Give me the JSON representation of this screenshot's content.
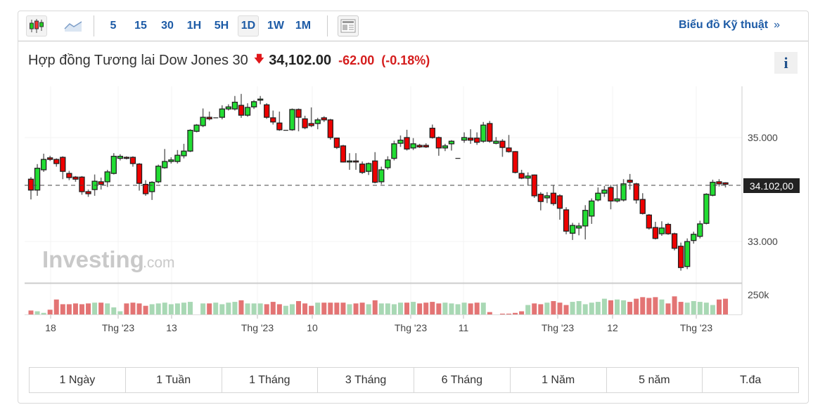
{
  "toolbar": {
    "chart_type_icons": [
      "candlestick-icon",
      "area-chart-icon"
    ],
    "intervals": [
      "5",
      "15",
      "30",
      "1H",
      "5H",
      "1D",
      "1W",
      "1M"
    ],
    "selected_interval": "1D",
    "layout_icon": "news-layout-icon",
    "technical_link": "Biểu đồ Kỹ thuật",
    "technical_chevron": "»"
  },
  "instrument": {
    "name": "Hợp đồng Tương lai Dow Jones 30",
    "direction_icon": "down-arrow-icon",
    "price": "34,102.00",
    "change": "-62.00",
    "change_pct": "(-0.18%)",
    "info_label": "i"
  },
  "watermark": {
    "brand": "Investing",
    "suffix": ".com"
  },
  "colors": {
    "up": "#22dd33",
    "down": "#ee0000",
    "vol_up": "#a8d8b4",
    "vol_down": "#e37474",
    "accent": "#1d5ba6",
    "last_price_bg": "#222222"
  },
  "chart_data": {
    "type": "candlestick",
    "y_ticks": [
      "35.000",
      "33.000"
    ],
    "y_tick_values": [
      35000,
      33000
    ],
    "volume_tick": "250k",
    "volume_tick_value": 250,
    "last_price_label": "34.102,00",
    "last_price": 34102,
    "x_tick_labels": [
      "18",
      "Thg '23",
      "13",
      "Thg '23",
      "10",
      "Thg '23",
      "11",
      "Thg '23",
      "12",
      "Thg '23"
    ],
    "ohlc": [
      [
        34200,
        34240,
        33810,
        33990
      ],
      [
        33990,
        34490,
        33880,
        34410
      ],
      [
        34380,
        34690,
        34340,
        34580
      ],
      [
        34610,
        34650,
        34550,
        34580
      ],
      [
        34580,
        34600,
        34440,
        34500
      ],
      [
        34620,
        34640,
        34200,
        34350
      ],
      [
        34310,
        34360,
        34180,
        34230
      ],
      [
        34240,
        34260,
        34150,
        34200
      ],
      [
        34240,
        34260,
        33900,
        33960
      ],
      [
        33960,
        34000,
        33860,
        33920
      ],
      [
        34000,
        34290,
        33880,
        34160
      ],
      [
        34150,
        34230,
        34000,
        34100
      ],
      [
        34150,
        34380,
        34050,
        34340
      ],
      [
        34310,
        34700,
        34290,
        34640
      ],
      [
        34600,
        34680,
        34560,
        34640
      ],
      [
        34620,
        34640,
        34580,
        34600
      ],
      [
        34620,
        34640,
        34440,
        34500
      ],
      [
        34490,
        34510,
        33980,
        34120
      ],
      [
        34100,
        34180,
        33880,
        33920
      ],
      [
        33960,
        34160,
        33800,
        34140
      ],
      [
        34150,
        34480,
        34120,
        34450
      ],
      [
        34420,
        34780,
        34400,
        34540
      ],
      [
        34540,
        34620,
        34500,
        34570
      ],
      [
        34540,
        34760,
        34500,
        34660
      ],
      [
        34650,
        34880,
        34600,
        34740
      ],
      [
        34740,
        35160,
        34720,
        35140
      ],
      [
        35120,
        35260,
        35100,
        35240
      ],
      [
        35230,
        35560,
        35200,
        35390
      ],
      [
        35390,
        35500,
        35330,
        35360
      ],
      [
        35380,
        35380,
        35380,
        35380
      ],
      [
        35390,
        35620,
        35350,
        35550
      ],
      [
        35550,
        35640,
        35520,
        35590
      ],
      [
        35550,
        35800,
        35520,
        35680
      ],
      [
        35620,
        35840,
        35380,
        35430
      ],
      [
        35430,
        35660,
        35400,
        35580
      ],
      [
        35590,
        35720,
        35550,
        35690
      ],
      [
        35720,
        35800,
        35640,
        35740
      ],
      [
        35630,
        35660,
        35360,
        35390
      ],
      [
        35380,
        35520,
        35250,
        35300
      ],
      [
        35280,
        35500,
        35130,
        35150
      ],
      [
        35140,
        35140,
        35140,
        35140
      ],
      [
        35150,
        35560,
        35130,
        35540
      ],
      [
        35540,
        35560,
        35120,
        35390
      ],
      [
        35360,
        35420,
        35160,
        35190
      ],
      [
        35270,
        35580,
        35200,
        35230
      ],
      [
        35270,
        35380,
        35160,
        35340
      ],
      [
        35380,
        35410,
        35300,
        35340
      ],
      [
        35340,
        35360,
        34960,
        35000
      ],
      [
        34990,
        35000,
        34780,
        34810
      ],
      [
        34840,
        34860,
        34520,
        34530
      ],
      [
        34530,
        34700,
        34380,
        34550
      ],
      [
        34550,
        34700,
        34380,
        34530
      ],
      [
        34490,
        34540,
        34300,
        34330
      ],
      [
        34350,
        34520,
        34280,
        34500
      ],
      [
        34550,
        34720,
        34120,
        34140
      ],
      [
        34150,
        34440,
        34100,
        34380
      ],
      [
        34420,
        34640,
        34380,
        34570
      ],
      [
        34600,
        34940,
        34560,
        34880
      ],
      [
        34890,
        35040,
        34820,
        34950
      ],
      [
        35000,
        35150,
        34750,
        34780
      ],
      [
        34800,
        34990,
        34760,
        34880
      ],
      [
        34850,
        34880,
        34800,
        34820
      ],
      [
        34850,
        34890,
        34800,
        34820
      ],
      [
        35180,
        35250,
        34980,
        35000
      ],
      [
        35000,
        35020,
        34650,
        34800
      ],
      [
        34800,
        34880,
        34740,
        34840
      ],
      [
        34880,
        34950,
        34750,
        34930
      ],
      [
        34600,
        34600,
        34600,
        34600
      ],
      [
        34950,
        35100,
        34900,
        35000
      ],
      [
        34990,
        35160,
        34880,
        34950
      ],
      [
        34990,
        35100,
        34860,
        34910
      ],
      [
        34930,
        35300,
        34900,
        35240
      ],
      [
        35270,
        35320,
        34900,
        34930
      ],
      [
        34890,
        35010,
        34870,
        34930
      ],
      [
        34930,
        34970,
        34630,
        34810
      ],
      [
        34800,
        35050,
        34710,
        34730
      ],
      [
        34730,
        34740,
        34310,
        34330
      ],
      [
        34310,
        34380,
        34200,
        34220
      ],
      [
        34220,
        34330,
        34080,
        34260
      ],
      [
        34280,
        34290,
        33840,
        33880
      ],
      [
        33910,
        33950,
        33600,
        33770
      ],
      [
        33840,
        33950,
        33740,
        33880
      ],
      [
        33930,
        34090,
        33690,
        33730
      ],
      [
        33880,
        33910,
        33420,
        33640
      ],
      [
        33610,
        33660,
        33140,
        33200
      ],
      [
        33160,
        33360,
        33030,
        33310
      ],
      [
        33260,
        33360,
        33120,
        33300
      ],
      [
        33300,
        33700,
        33040,
        33600
      ],
      [
        33490,
        33830,
        33340,
        33780
      ],
      [
        33800,
        34040,
        33770,
        33930
      ],
      [
        33930,
        34070,
        33860,
        33990
      ],
      [
        34040,
        34090,
        33620,
        33780
      ],
      [
        33780,
        34100,
        33750,
        33820
      ],
      [
        33800,
        34200,
        33770,
        34110
      ],
      [
        34180,
        34300,
        34000,
        34140
      ],
      [
        34110,
        34130,
        33730,
        33800
      ],
      [
        33810,
        33930,
        33520,
        33540
      ],
      [
        33510,
        33530,
        33230,
        33260
      ],
      [
        33270,
        33380,
        33040,
        33060
      ],
      [
        33150,
        33390,
        33110,
        33260
      ],
      [
        33330,
        33360,
        33130,
        33150
      ],
      [
        33150,
        33170,
        32830,
        32870
      ],
      [
        32910,
        32980,
        32440,
        32500
      ],
      [
        32520,
        33060,
        32470,
        33000
      ],
      [
        33020,
        33190,
        32960,
        33140
      ],
      [
        33100,
        33400,
        33060,
        33340
      ],
      [
        33350,
        33930,
        33330,
        33910
      ],
      [
        33890,
        34190,
        33870,
        34140
      ],
      [
        34150,
        34200,
        34060,
        34110
      ],
      [
        34130,
        34140,
        34040,
        34102
      ]
    ],
    "volume_k": [
      50,
      40,
      20,
      60,
      190,
      130,
      130,
      140,
      130,
      140,
      150,
      150,
      140,
      90,
      40,
      140,
      150,
      140,
      110,
      130,
      140,
      150,
      130,
      140,
      150,
      160,
      0,
      140,
      140,
      150,
      130,
      150,
      160,
      180,
      140,
      140,
      140,
      130,
      160,
      130,
      110,
      130,
      170,
      140,
      110,
      150,
      150,
      150,
      150,
      150,
      130,
      140,
      150,
      130,
      180,
      140,
      140,
      130,
      150,
      150,
      160,
      140,
      150,
      160,
      140,
      150,
      140,
      130,
      150,
      140,
      150,
      150,
      30,
      0,
      10,
      10,
      20,
      40,
      120,
      140,
      130,
      150,
      170,
      150,
      120,
      160,
      170,
      130,
      150,
      160,
      200,
      180,
      190,
      180,
      160,
      200,
      220,
      210,
      220,
      190,
      140,
      230,
      160,
      150,
      170,
      160,
      150,
      120,
      190,
      200
    ]
  },
  "ranges": [
    "1 Ngày",
    "1 Tuần",
    "1 Tháng",
    "3 Tháng",
    "6 Tháng",
    "1 Năm",
    "5 năm",
    "T.đa"
  ]
}
